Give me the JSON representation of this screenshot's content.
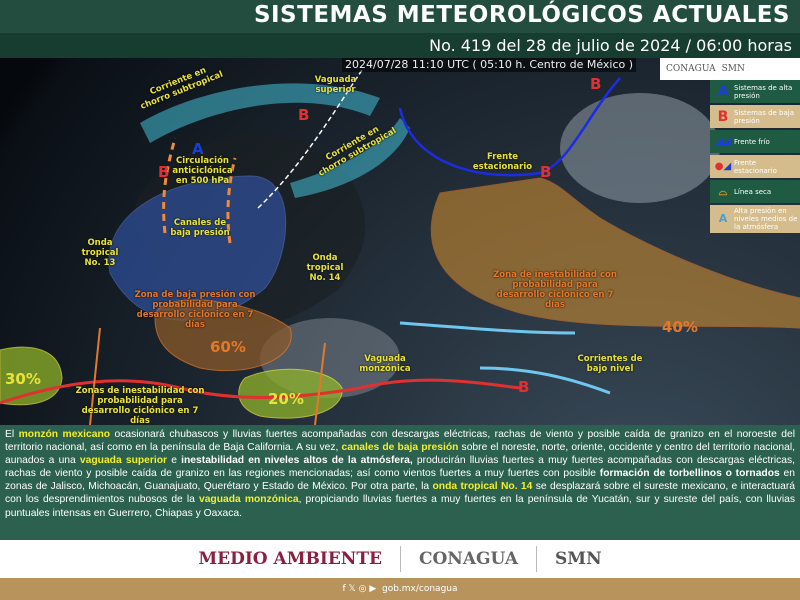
{
  "header": {
    "title": "SISTEMAS METEOROLÓGICOS ACTUALES",
    "subtitle": "No. 419 del 28 de julio de 2024 / 06:00 horas"
  },
  "map": {
    "timestamp": "2024/07/28 11:10 UTC ( 05:10 h. Centro de México )",
    "labels": {
      "jet1": "Corriente en chorro subtropical",
      "jet2": "Corriente en chorro subtropical",
      "vaguada_superior": "Vaguada superior",
      "anticiclon": "Circulación anticiclónica en 500 hPa",
      "canales": "Canales de baja presión",
      "frente": "Frente estacionario",
      "onda13": "Onda tropical No. 13",
      "onda14": "Onda tropical No. 14",
      "zona_baja": "Zona de baja presión con probabilidad para desarrollo ciclónico en 7 días",
      "zona_inest_atl": "Zona de inestabilidad con probabilidad para desarrollo ciclónico en 7 días",
      "zonas_inest_pac": "Zonas de inestabilidad con probabilidad para desarrollo ciclónico en 7 días",
      "vaguada_monzonica": "Vaguada monzónica",
      "corrientes_bajo": "Corrientes de bajo nivel"
    },
    "probabilities": {
      "p60": "60%",
      "p40": "40%",
      "p30": "30%",
      "p20": "20%"
    },
    "symbols": {
      "high": "A",
      "low": "B"
    }
  },
  "logos": {
    "conagua": "CONAGUA",
    "smn": "SMN"
  },
  "legend": [
    {
      "icon": "A",
      "label": "Sistemas de alta presión",
      "color": "#1a3fd6"
    },
    {
      "icon": "B",
      "label": "Sistemas de baja presión",
      "color": "#e03030"
    },
    {
      "icon": "cold-front-icon",
      "label": "Frente frío"
    },
    {
      "icon": "stationary-front-icon",
      "label": "Frente estacionario"
    },
    {
      "icon": "dry-line-icon",
      "label": "Línea seca"
    },
    {
      "icon": "A",
      "label": "Alta presión en niveles medios de la atmósfera"
    }
  ],
  "text": {
    "p1": "El ",
    "h1": "monzón mexicano",
    "p2": " ocasionará chubascos y lluvias fuertes acompañadas con descargas eléctricas, rachas de viento y posible caída de granizo en el noroeste del territorio nacional, así como en la península de Baja California. A su vez, ",
    "h2": "canales de baja presión",
    "p3": " sobre el noreste, norte, oriente, occidente y centro del territorio nacional, aunados a una ",
    "h3": "vaguada superior",
    "p4": " e ",
    "b1": "inestabilidad en niveles altos de la atmósfera,",
    "p5": " producirán lluvias fuertes a muy fuertes acompañadas con descargas eléctricas, rachas de viento y posible caída de granizo en las regiones mencionadas; así como vientos fuertes a muy fuertes con posible ",
    "b2": "formación de torbellinos o tornados",
    "p6": " en zonas de Jalisco, Michoacán, Guanajuato, Querétaro y Estado de México. Por otra parte, la ",
    "h4": "onda tropical No. 14",
    "p7": " se desplazará sobre el sureste mexicano, e interactuará con los desprendimientos nubosos de la ",
    "h5": "vaguada monzónica",
    "p8": ", propiciando lluvias fuertes a muy fuertes en la península de Yucatán, sur y sureste del país, con lluvias puntuales intensas en Guerrero, Chiapas y Oaxaca."
  },
  "footer": {
    "medio_ambiente": "MEDIO AMBIENTE",
    "conagua": "CONAGUA",
    "smn": "SMN",
    "social": "f 𝕏 ◎ ▶",
    "url": "gob.mx/conagua"
  },
  "colors": {
    "header": "#234d3f",
    "panel": "#2c6150",
    "accent": "#f2ef2c",
    "bar": "#b8945c"
  }
}
